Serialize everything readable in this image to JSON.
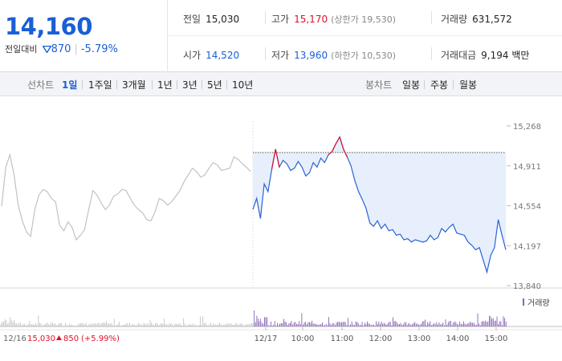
{
  "quote": {
    "price": "14,160",
    "change_label": "전일대비",
    "change_icon": "down-triangle-icon",
    "change_value": "870",
    "change_pct": "-5.79%",
    "colors": {
      "up": "#e0102a",
      "down": "#1a5fd6"
    }
  },
  "stats": {
    "prev_close": {
      "label": "전일",
      "value": "15,030"
    },
    "high": {
      "label": "고가",
      "value": "15,170",
      "sub": "(상한가 19,530)"
    },
    "volume": {
      "label": "거래량",
      "value": "631,572"
    },
    "open": {
      "label": "시가",
      "value": "14,520"
    },
    "low": {
      "label": "저가",
      "value": "13,960",
      "sub": "(하한가 10,530)"
    },
    "trade_value": {
      "label": "거래대금",
      "value": "9,194 백만"
    }
  },
  "tabs": {
    "line_label": "선차트",
    "line_items": [
      "1일",
      "1주일",
      "3개월",
      "1년",
      "3년",
      "5년",
      "10년"
    ],
    "line_active": "1일",
    "candle_label": "봉차트",
    "candle_items": [
      "일봉",
      "주봉",
      "월봉"
    ]
  },
  "chart_data": {
    "type": "line",
    "y_ticks": [
      "15,268",
      "14,911",
      "14,554",
      "14,197",
      "13,840"
    ],
    "ylim": [
      13840,
      15268
    ],
    "x_labels": [
      "12/17",
      "10:00",
      "11:00",
      "12:00",
      "13:00",
      "14:00",
      "15:00"
    ],
    "reference_price": 15030,
    "prev_day": {
      "date": "12/16",
      "close": "15,030",
      "change_icon": "up-triangle-icon",
      "change": "850",
      "change_pct": "(+5.99%)",
      "color": "#bdbdbd",
      "values": [
        14550,
        14900,
        15010,
        14830,
        14560,
        14420,
        14320,
        14280,
        14520,
        14650,
        14700,
        14680,
        14620,
        14590,
        14380,
        14330,
        14410,
        14360,
        14250,
        14290,
        14340,
        14520,
        14690,
        14650,
        14580,
        14520,
        14560,
        14640,
        14660,
        14700,
        14690,
        14620,
        14560,
        14520,
        14490,
        14430,
        14420,
        14500,
        14620,
        14600,
        14560,
        14590,
        14640,
        14690,
        14770,
        14830,
        14890,
        14860,
        14810,
        14830,
        14890,
        14940,
        14920,
        14870,
        14880,
        14890,
        14990,
        14970,
        14930,
        14900,
        14860
      ]
    },
    "today": {
      "date": "12/17",
      "color": "#2a62d6",
      "above_ref_color": "#e0102a",
      "fill": "#e6effb",
      "values": [
        14520,
        14620,
        14440,
        14750,
        14680,
        14880,
        15060,
        14900,
        14960,
        14930,
        14870,
        14890,
        14950,
        14900,
        14820,
        14850,
        14940,
        14900,
        14980,
        14940,
        15010,
        15040,
        15110,
        15170,
        15060,
        14990,
        14910,
        14780,
        14680,
        14610,
        14530,
        14400,
        14370,
        14420,
        14350,
        14390,
        14330,
        14340,
        14290,
        14300,
        14250,
        14260,
        14230,
        14250,
        14240,
        14230,
        14240,
        14290,
        14250,
        14270,
        14350,
        14320,
        14360,
        14390,
        14310,
        14300,
        14290,
        14230,
        14200,
        14160,
        14180,
        14070,
        13960,
        14110,
        14180,
        14430,
        14290,
        14160
      ]
    },
    "volume_legend": "거래량",
    "volume_color": "#8a63b8"
  }
}
